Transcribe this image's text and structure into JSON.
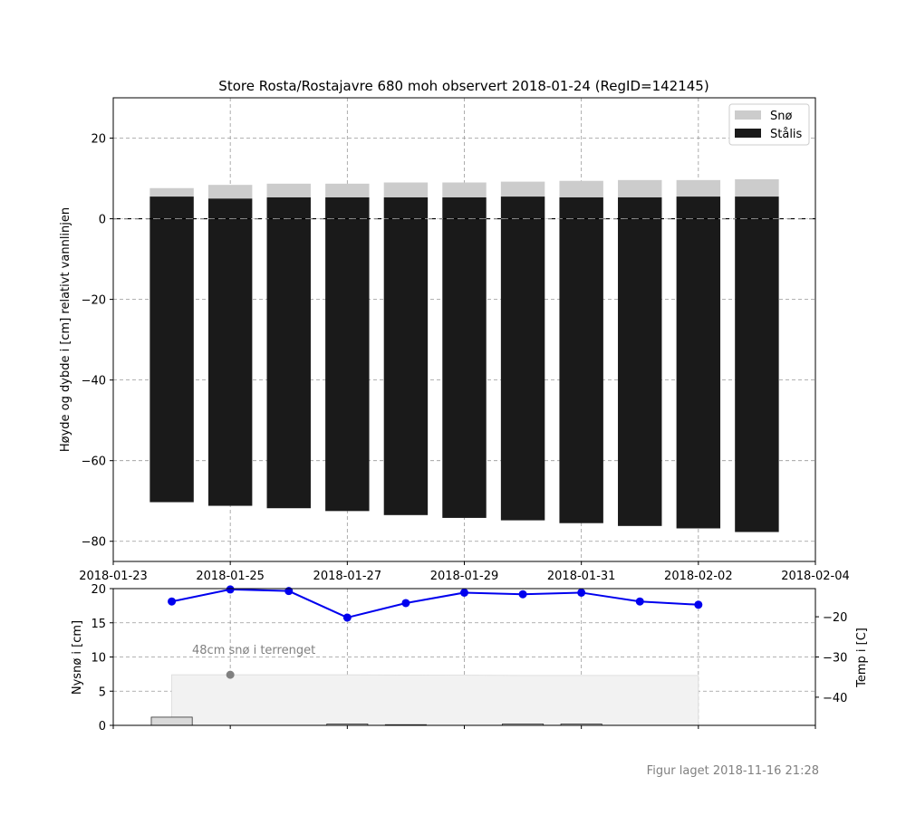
{
  "title": "Store Rosta/Rostajavre 680 moh observert 2018-01-24 (RegID=142145)",
  "footer": "Figur laget 2018-11-16 21:28",
  "colors": {
    "snow": "#cccccc",
    "ice": "#1a1a1a",
    "temp": "#0000ee",
    "ground_snow_point": "#808080",
    "ground_snow_fill": "#f2f2f2",
    "grid": "#999999",
    "annotation": "#808080"
  },
  "chart_data": [
    {
      "type": "bar",
      "subtype": "stacked",
      "ylabel": "Høyde og dybde i [cm] relativt vannlinjen",
      "x_ticks": [
        "2018-01-23",
        "2018-01-25",
        "2018-01-27",
        "2018-01-29",
        "2018-01-31",
        "2018-02-02",
        "2018-02-04"
      ],
      "xlim": [
        "2018-01-23",
        "2018-02-04"
      ],
      "ylim": [
        -85,
        30
      ],
      "y_ticks": [
        20,
        0,
        -20,
        -40,
        -60,
        -80
      ],
      "y_tick_labels": [
        "20",
        "0",
        "−20",
        "−40",
        "−60",
        "−80"
      ],
      "grid": true,
      "legend_position": "top-right",
      "legend": [
        "Snø",
        "Stålis"
      ],
      "water_line": 0,
      "categories": [
        "2018-01-24",
        "2018-01-25",
        "2018-01-26",
        "2018-01-27",
        "2018-01-28",
        "2018-01-29",
        "2018-01-30",
        "2018-01-31",
        "2018-02-01",
        "2018-02-02",
        "2018-02-03"
      ],
      "series": [
        {
          "name": "Stålis",
          "top": [
            5.5,
            5.0,
            5.3,
            5.3,
            5.3,
            5.3,
            5.5,
            5.3,
            5.3,
            5.5,
            5.5
          ],
          "bottom": [
            -70.3,
            -71.2,
            -71.8,
            -72.5,
            -73.5,
            -74.2,
            -74.8,
            -75.5,
            -76.2,
            -76.8,
            -77.7
          ]
        },
        {
          "name": "Snø",
          "top": [
            7.6,
            8.4,
            8.7,
            8.7,
            9.0,
            9.0,
            9.2,
            9.4,
            9.6,
            9.6,
            9.8
          ]
        }
      ]
    },
    {
      "type": "bar",
      "ylabel": "Nysnø i [cm]",
      "ylabel_right": "Temp i [C]",
      "ylim": [
        0,
        20
      ],
      "y_ticks": [
        0,
        5,
        10,
        15,
        20
      ],
      "y2lim": [
        -47,
        -13
      ],
      "y2_ticks": [
        -20,
        -30,
        -40
      ],
      "y2_tick_labels": [
        "−20",
        "−30",
        "−40"
      ],
      "grid": true,
      "new_snow": {
        "dates": [
          "2018-01-24",
          "2018-01-27",
          "2018-01-28",
          "2018-01-30",
          "2018-01-31"
        ],
        "values": [
          1.2,
          0.2,
          0.1,
          0.2,
          0.2
        ]
      },
      "ground_snow": {
        "x": [
          "2018-01-24",
          "2018-01-27",
          "2018-01-30",
          "2018-02-02"
        ],
        "values": [
          7.4,
          7.4,
          7.3,
          7.3
        ],
        "point_date": "2018-01-25",
        "point_value": 7.4,
        "annotation": "48cm snø i terrenget"
      },
      "temperature": {
        "dates": [
          "2018-01-24",
          "2018-01-25",
          "2018-01-26",
          "2018-01-27",
          "2018-01-28",
          "2018-01-29",
          "2018-01-30",
          "2018-01-31",
          "2018-02-01",
          "2018-02-02"
        ],
        "values": [
          -16.2,
          -13.2,
          -13.6,
          -20.2,
          -16.6,
          -14.0,
          -14.4,
          -14.0,
          -16.2,
          -17.0
        ]
      }
    }
  ]
}
